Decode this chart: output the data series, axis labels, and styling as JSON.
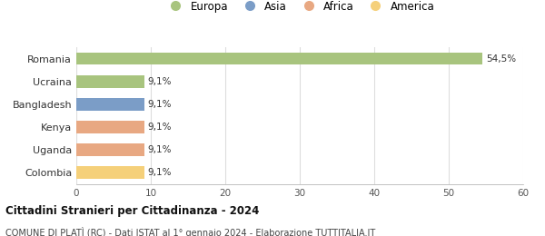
{
  "categories": [
    "Romania",
    "Ucraina",
    "Bangladesh",
    "Kenya",
    "Uganda",
    "Colombia"
  ],
  "values": [
    54.5,
    9.1,
    9.1,
    9.1,
    9.1,
    9.1
  ],
  "labels": [
    "54,5%",
    "9,1%",
    "9,1%",
    "9,1%",
    "9,1%",
    "9,1%"
  ],
  "bar_colors": [
    "#a8c47e",
    "#a8c47e",
    "#7b9dc7",
    "#e8a882",
    "#e8a882",
    "#f5d07a"
  ],
  "legend_items": [
    {
      "label": "Europa",
      "color": "#a8c47e"
    },
    {
      "label": "Asia",
      "color": "#7b9dc7"
    },
    {
      "label": "Africa",
      "color": "#e8a882"
    },
    {
      "label": "America",
      "color": "#f5d07a"
    }
  ],
  "xlim": [
    0,
    60
  ],
  "xticks": [
    0,
    10,
    20,
    30,
    40,
    50,
    60
  ],
  "title_bold": "Cittadini Stranieri per Cittadinanza - 2024",
  "subtitle": "COMUNE DI PLATÌ (RC) - Dati ISTAT al 1° gennaio 2024 - Elaborazione TUTTITALIA.IT",
  "background_color": "#ffffff",
  "grid_color": "#dddddd",
  "bar_height": 0.55
}
